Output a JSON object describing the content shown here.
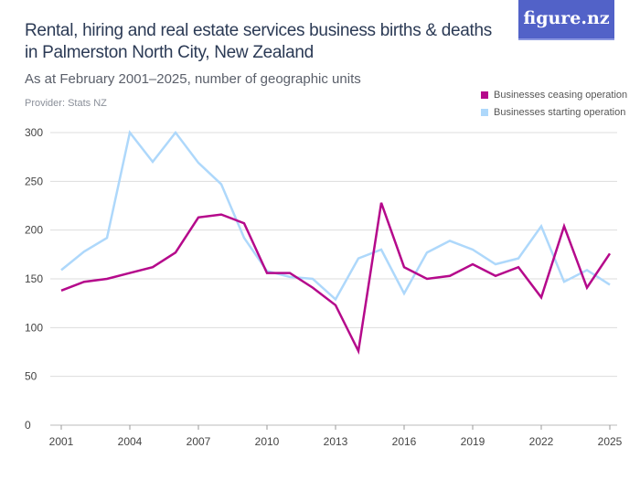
{
  "header": {
    "title": "Rental, hiring and real estate services business births & deaths in Palmerston North City, New Zealand",
    "subtitle": "As at February 2001–2025, number of geographic units",
    "provider": "Provider: Stats NZ",
    "logo": "figure.nz",
    "logo_color": "#5262c8"
  },
  "chart_data": {
    "type": "line",
    "title": "Rental, hiring and real estate services business births & deaths in Palmerston North City, New Zealand",
    "xlabel": "",
    "ylabel": "",
    "x": [
      2001,
      2002,
      2003,
      2004,
      2005,
      2006,
      2007,
      2008,
      2009,
      2010,
      2011,
      2012,
      2013,
      2014,
      2015,
      2016,
      2017,
      2018,
      2019,
      2020,
      2021,
      2022,
      2023,
      2024,
      2025
    ],
    "xticks": [
      "2001",
      "2004",
      "2007",
      "2010",
      "2013",
      "2016",
      "2019",
      "2022",
      "2025"
    ],
    "yticks": [
      "0",
      "50",
      "100",
      "150",
      "200",
      "250",
      "300"
    ],
    "ylim": [
      0,
      300
    ],
    "xlim": [
      2001,
      2025
    ],
    "grid": true,
    "legend_position": "top-right",
    "series": [
      {
        "name": "Businesses ceasing operation",
        "color": "#b5098b",
        "values": [
          138,
          147,
          150,
          156,
          162,
          177,
          213,
          216,
          207,
          156,
          156,
          141,
          123,
          76,
          228,
          162,
          150,
          153,
          165,
          153,
          162,
          131,
          204,
          141,
          176
        ]
      },
      {
        "name": "Businesses starting operation",
        "color": "#aed8fb",
        "values": [
          159,
          178,
          192,
          300,
          270,
          300,
          269,
          247,
          192,
          158,
          152,
          150,
          129,
          171,
          180,
          135,
          177,
          189,
          180,
          165,
          171,
          204,
          147,
          159,
          144
        ]
      }
    ]
  }
}
